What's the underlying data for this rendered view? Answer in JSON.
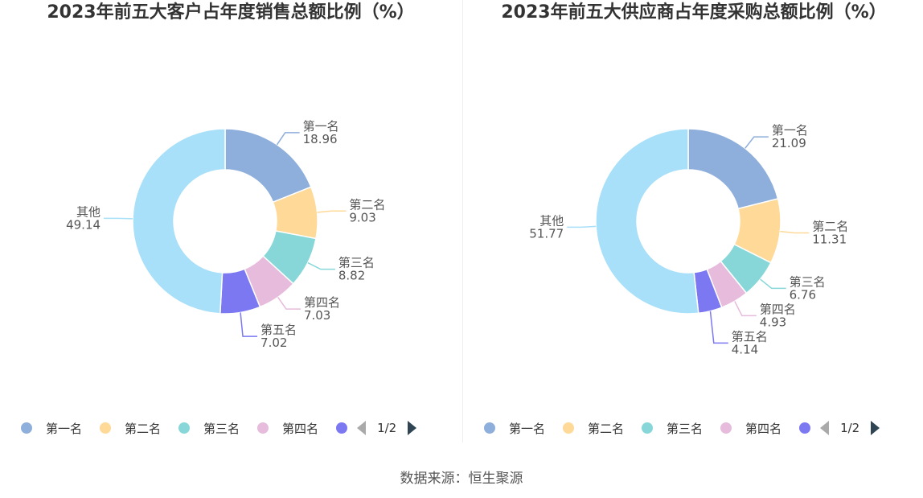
{
  "chart_data": [
    {
      "type": "pie",
      "title": "2023年前五大客户占年度销售总额比例（%）",
      "categories": [
        "第一名",
        "第二名",
        "第三名",
        "第四名",
        "第五名",
        "其他"
      ],
      "values": [
        18.96,
        9.03,
        8.82,
        7.03,
        7.02,
        49.14
      ],
      "value_labels": [
        "18.96",
        "9.03",
        "8.82",
        "7.03",
        "7.02",
        "49.14"
      ],
      "colors": [
        "#8eaedb",
        "#fed997",
        "#87d7d8",
        "#e6bbdc",
        "#7b78f2",
        "#a8dff9"
      ],
      "legend": {
        "position": "bottom",
        "visible_items": [
          "第一名",
          "第二名",
          "第三名",
          "第四名"
        ],
        "page_indicator": "1/2"
      }
    },
    {
      "type": "pie",
      "title": "2023年前五大供应商占年度采购总额比例（%）",
      "categories": [
        "第一名",
        "第二名",
        "第三名",
        "第四名",
        "第五名",
        "其他"
      ],
      "values": [
        21.09,
        11.31,
        6.76,
        4.93,
        4.14,
        51.77
      ],
      "value_labels": [
        "21.09",
        "11.31",
        "6.76",
        "4.93",
        "4.14",
        "51.77"
      ],
      "colors": [
        "#8eaedb",
        "#fed997",
        "#87d7d8",
        "#e6bbdc",
        "#7b78f2",
        "#a8dff9"
      ],
      "legend": {
        "position": "bottom",
        "visible_items": [
          "第一名",
          "第二名",
          "第三名",
          "第四名"
        ],
        "page_indicator": "1/2"
      }
    }
  ],
  "source": "数据来源：恒生聚源"
}
